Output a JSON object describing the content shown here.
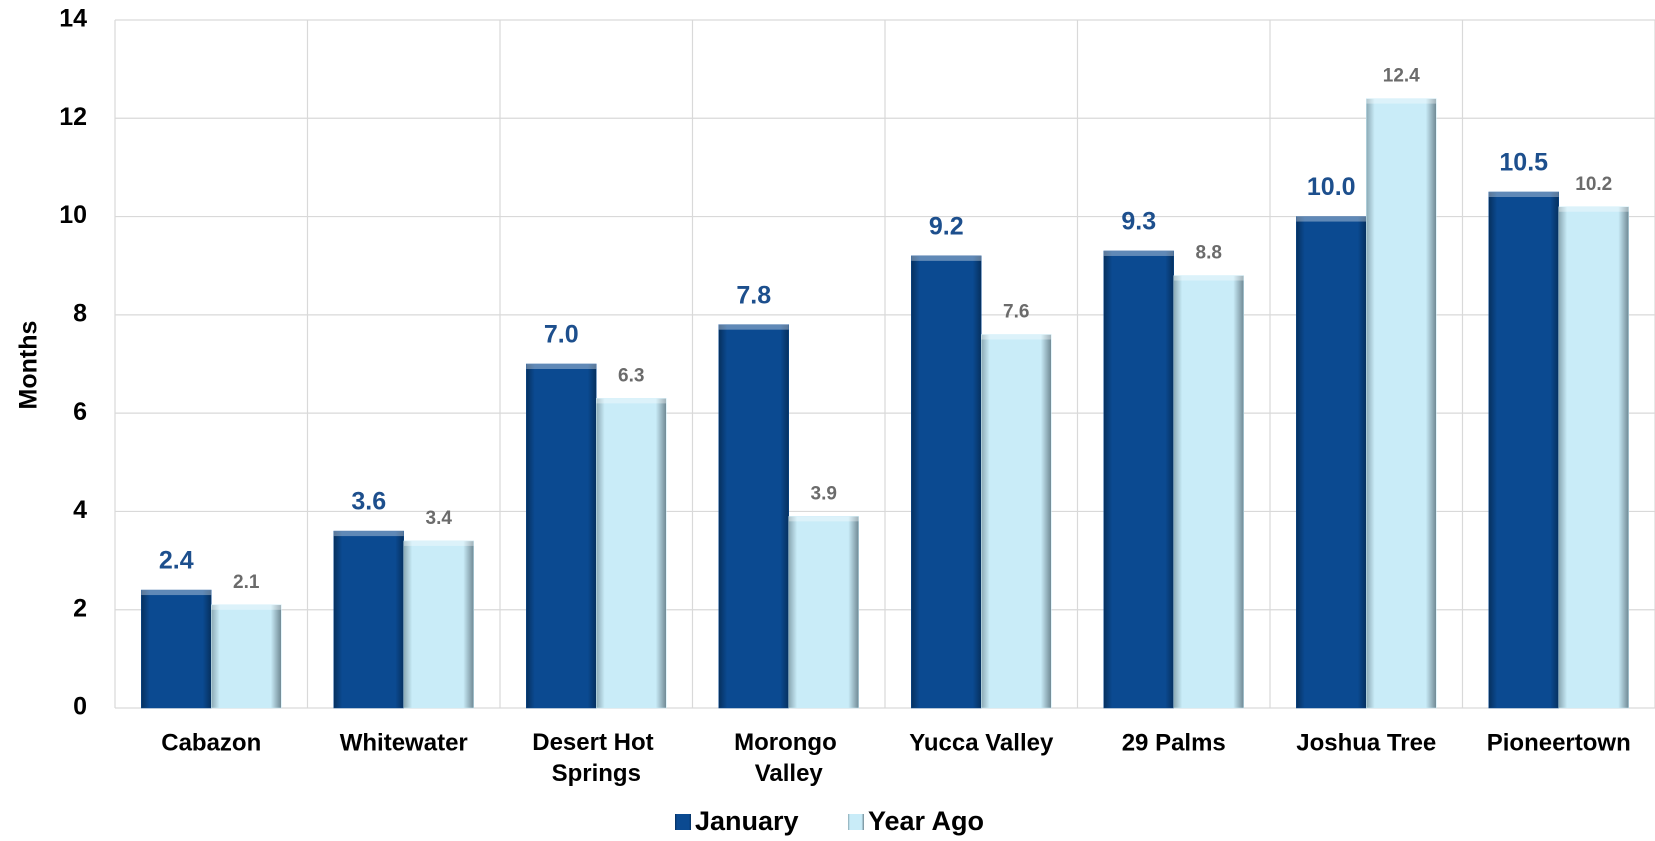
{
  "chart_data": {
    "type": "bar",
    "ylabel": "Months",
    "categories": [
      "Cabazon",
      "Whitewater",
      "Desert Hot Springs",
      "Morongo Valley",
      "Yucca Valley",
      "29 Palms",
      "Joshua Tree",
      "Pioneertown"
    ],
    "series": [
      {
        "name": "January",
        "color": "#0b4a91",
        "values": [
          2.4,
          3.6,
          7.0,
          7.8,
          9.2,
          9.3,
          10.0,
          10.5
        ],
        "value_labels": [
          "2.4",
          "3.6",
          "7.0",
          "7.8",
          "9.2",
          "9.3",
          "10.0",
          "10.5"
        ]
      },
      {
        "name": "Year Ago",
        "color": "#c9ecf8",
        "values": [
          2.1,
          3.4,
          6.3,
          3.9,
          7.6,
          8.8,
          12.4,
          10.2
        ],
        "value_labels": [
          "2.1",
          "3.4",
          "6.3",
          "3.9",
          "7.6",
          "8.8",
          "12.4",
          "10.2"
        ]
      }
    ],
    "ylim": [
      0,
      14
    ],
    "yticks": [
      0,
      2,
      4,
      6,
      8,
      10,
      12,
      14
    ],
    "grid": true,
    "legend": "bottom"
  }
}
